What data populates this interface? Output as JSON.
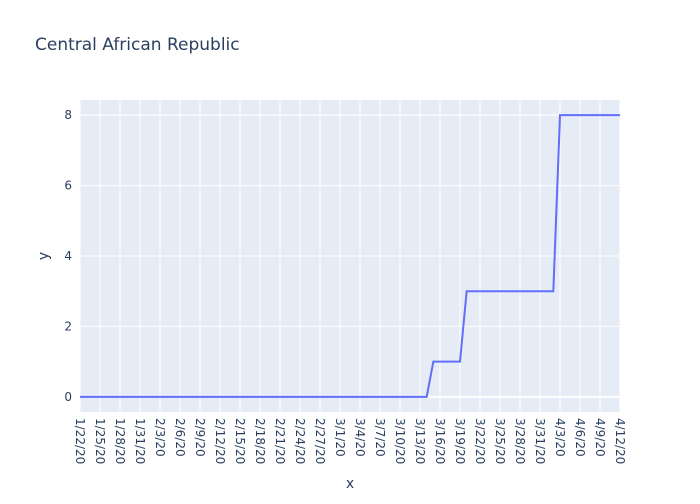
{
  "chart_data": {
    "type": "line",
    "title": "Central African Republic",
    "x_label": "x",
    "y_label": "y",
    "x": [
      "1/22/20",
      "1/23/20",
      "1/24/20",
      "1/25/20",
      "1/26/20",
      "1/27/20",
      "1/28/20",
      "1/29/20",
      "1/30/20",
      "1/31/20",
      "2/1/20",
      "2/2/20",
      "2/3/20",
      "2/4/20",
      "2/5/20",
      "2/6/20",
      "2/7/20",
      "2/8/20",
      "2/9/20",
      "2/10/20",
      "2/11/20",
      "2/12/20",
      "2/13/20",
      "2/14/20",
      "2/15/20",
      "2/16/20",
      "2/17/20",
      "2/18/20",
      "2/19/20",
      "2/20/20",
      "2/21/20",
      "2/22/20",
      "2/23/20",
      "2/24/20",
      "2/25/20",
      "2/26/20",
      "2/27/20",
      "2/28/20",
      "2/29/20",
      "3/1/20",
      "3/2/20",
      "3/3/20",
      "3/4/20",
      "3/5/20",
      "3/6/20",
      "3/7/20",
      "3/8/20",
      "3/9/20",
      "3/10/20",
      "3/11/20",
      "3/12/20",
      "3/13/20",
      "3/14/20",
      "3/15/20",
      "3/16/20",
      "3/17/20",
      "3/18/20",
      "3/19/20",
      "3/20/20",
      "3/21/20",
      "3/22/20",
      "3/23/20",
      "3/24/20",
      "3/25/20",
      "3/26/20",
      "3/27/20",
      "3/28/20",
      "3/29/20",
      "3/30/20",
      "3/31/20",
      "4/1/20",
      "4/2/20",
      "4/3/20",
      "4/4/20",
      "4/5/20",
      "4/6/20",
      "4/7/20",
      "4/8/20",
      "4/9/20",
      "4/10/20",
      "4/11/20",
      "4/12/20"
    ],
    "series": [
      {
        "color": "#636efa",
        "values": [
          0,
          0,
          0,
          0,
          0,
          0,
          0,
          0,
          0,
          0,
          0,
          0,
          0,
          0,
          0,
          0,
          0,
          0,
          0,
          0,
          0,
          0,
          0,
          0,
          0,
          0,
          0,
          0,
          0,
          0,
          0,
          0,
          0,
          0,
          0,
          0,
          0,
          0,
          0,
          0,
          0,
          0,
          0,
          0,
          0,
          0,
          0,
          0,
          0,
          0,
          0,
          0,
          0,
          1,
          1,
          1,
          1,
          1,
          3,
          3,
          3,
          3,
          3,
          3,
          3,
          3,
          3,
          3,
          3,
          3,
          3,
          3,
          8,
          8,
          8,
          8,
          8,
          8,
          8,
          8,
          8,
          8
        ]
      }
    ],
    "ylim": [
      -0.43,
      8.43
    ],
    "yticks": [
      0,
      2,
      4,
      6,
      8
    ],
    "xtick_every": 3,
    "grid": true
  }
}
